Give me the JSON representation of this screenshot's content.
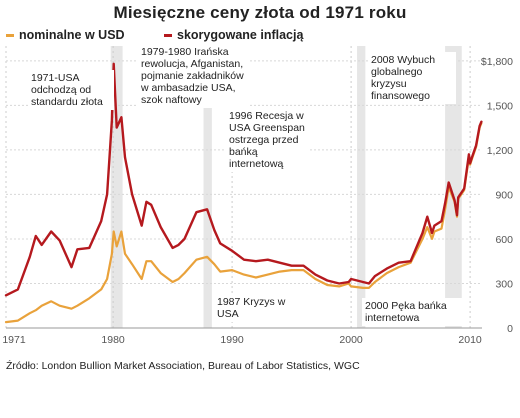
{
  "chart_data": {
    "type": "line",
    "title": "Miesięczne ceny złota od 1971 roku",
    "series": [
      {
        "name": "nominalne w USD",
        "color": "#e9a23b",
        "x": [
          1971,
          1972,
          1973,
          1973.5,
          1974,
          1974.8,
          1975.5,
          1976.5,
          1977,
          1978,
          1979,
          1979.5,
          1979.9,
          1980.05,
          1980.3,
          1980.7,
          1981,
          1981.6,
          1982.4,
          1982.8,
          1983.2,
          1984,
          1985,
          1985.5,
          1986,
          1987,
          1987.9,
          1988.5,
          1989,
          1990,
          1991,
          1992,
          1993,
          1994,
          1995,
          1996,
          1997,
          1998,
          1999,
          1999.8,
          2000,
          2001,
          2001.5,
          2002,
          2003,
          2004,
          2005,
          2006,
          2006.4,
          2006.8,
          2007,
          2007.6,
          2007.9,
          2008.2,
          2008.7,
          2008.9,
          2009,
          2009.5,
          2009.9,
          2010,
          2010.2,
          2010.5,
          2010.8,
          2010.95
        ],
        "y": [
          40,
          50,
          100,
          120,
          150,
          180,
          150,
          130,
          150,
          200,
          260,
          330,
          500,
          650,
          550,
          650,
          500,
          430,
          330,
          450,
          450,
          370,
          310,
          330,
          370,
          460,
          480,
          430,
          380,
          390,
          360,
          340,
          360,
          380,
          390,
          390,
          330,
          290,
          280,
          300,
          280,
          270,
          270,
          310,
          370,
          410,
          440,
          600,
          680,
          600,
          650,
          670,
          800,
          950,
          850,
          750,
          870,
          930,
          1150,
          1100,
          1150,
          1220,
          1350,
          1380
        ]
      },
      {
        "name": "skorygowane inflacją",
        "color": "#b5191e",
        "x": [
          1971,
          1972,
          1973,
          1973.5,
          1974,
          1974.8,
          1975.5,
          1976.5,
          1977,
          1978,
          1979,
          1979.5,
          1979.9,
          1980.05,
          1980.3,
          1980.7,
          1981,
          1981.6,
          1982.4,
          1982.8,
          1983.2,
          1984,
          1985,
          1985.5,
          1986,
          1987,
          1987.9,
          1988.5,
          1989,
          1990,
          1991,
          1992,
          1993,
          1994,
          1995,
          1996,
          1997,
          1998,
          1999,
          1999.8,
          2000,
          2001,
          2001.5,
          2002,
          2003,
          2004,
          2005,
          2006,
          2006.4,
          2006.8,
          2007,
          2007.6,
          2007.9,
          2008.2,
          2008.7,
          2008.9,
          2009,
          2009.5,
          2009.9,
          2010,
          2010.2,
          2010.5,
          2010.8,
          2010.95
        ],
        "y": [
          220,
          260,
          480,
          620,
          560,
          650,
          590,
          410,
          530,
          540,
          720,
          900,
          1400,
          1780,
          1350,
          1420,
          1150,
          900,
          690,
          850,
          830,
          680,
          540,
          560,
          600,
          780,
          800,
          660,
          570,
          520,
          460,
          450,
          460,
          440,
          420,
          420,
          360,
          320,
          300,
          310,
          330,
          310,
          300,
          350,
          400,
          440,
          450,
          640,
          750,
          640,
          690,
          720,
          840,
          980,
          860,
          760,
          880,
          940,
          1170,
          1110,
          1160,
          1230,
          1360,
          1390
        ]
      }
    ],
    "xlim": [
      1971,
      2011
    ],
    "ylim": [
      0,
      1900
    ],
    "xticks": [
      "1971",
      "1980",
      "1990",
      "2000",
      "2010"
    ],
    "yticks": [
      "0",
      "300",
      "600",
      "900",
      "1,200",
      "1,500",
      "$1,800"
    ],
    "grid": true,
    "legend_placement": "top-left",
    "shaded_periods": [
      [
        1979.8,
        1980.8
      ],
      [
        1987.6,
        1988.3
      ],
      [
        2000.5,
        2001.2
      ],
      [
        2007.9,
        2009.3
      ]
    ],
    "annotations": [
      {
        "id": "a1971",
        "year": 1971,
        "text": "1971-USA odchodzą od standardu złota"
      },
      {
        "id": "a1979",
        "year": 1980,
        "text": "1979-1980 Irańska rewolucja, Afganistan, pojmanie zakładników w ambasadzie USA, szok naftowy"
      },
      {
        "id": "a1996",
        "year": 1996,
        "text": "1996 Recesja w USA Greenspan ostrzega przed bańką internetową"
      },
      {
        "id": "a2008",
        "year": 2008,
        "text": "2008 Wybuch globalnego kryzysu finansowego"
      },
      {
        "id": "a1987",
        "year": 1987,
        "text": "1987 Kryzys w USA"
      },
      {
        "id": "a2000",
        "year": 2000,
        "text": "2000 Pęka bańka internetowa"
      }
    ]
  },
  "source": "Źródło: London Bullion Market Association, Bureau of Labor Statistics, WGC"
}
